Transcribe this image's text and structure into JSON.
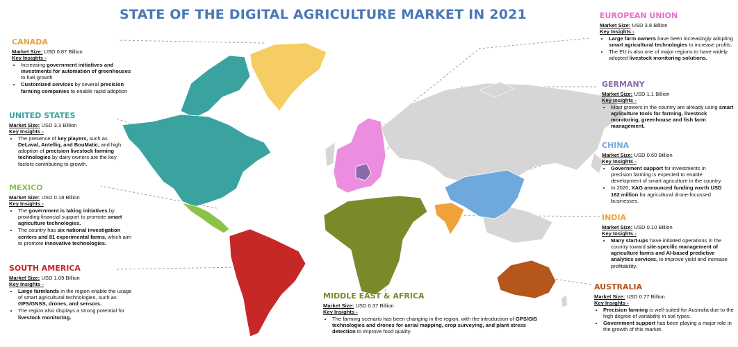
{
  "title": "STATE OF THE DIGITAL AGRICULTURE MARKET IN 2021",
  "labels": {
    "market_size": "Market Size:",
    "key_insights": "Key Insights -"
  },
  "regions": [
    {
      "key": "canada",
      "name": "CANADA",
      "color": "#e8a33c",
      "market_size": "USD 0.87 Billion",
      "insights": [
        [
          [
            "Increasing ",
            false
          ],
          [
            "government initiatives and investments for automation of greenhouses",
            true
          ],
          [
            " to fuel growth",
            false
          ]
        ],
        [
          [
            "Customized services",
            true
          ],
          [
            " by several ",
            false
          ],
          [
            "precision farming companies",
            true
          ],
          [
            " to enable rapid adoption",
            false
          ]
        ]
      ]
    },
    {
      "key": "us",
      "name": "UNITED STATES",
      "color": "#3aa3a0",
      "market_size": "USD 3.3 Billion",
      "insights": [
        [
          [
            "The presence of ",
            false
          ],
          [
            "key players,",
            true
          ],
          [
            " such as ",
            false
          ],
          [
            "DeLaval, Antelliq, and BouMatic,",
            true
          ],
          [
            " and high adoption of ",
            false
          ],
          [
            "precision livestock farming technologies",
            true
          ],
          [
            " by dairy owners are the key factors contributing to growth.",
            false
          ]
        ]
      ]
    },
    {
      "key": "mexico",
      "name": "MEXICO",
      "color": "#8bc34a",
      "market_size": "USD 0.18 Billion",
      "insights": [
        [
          [
            "The ",
            false
          ],
          [
            "government is taking initiatives",
            true
          ],
          [
            " by providing financial support to promote ",
            false
          ],
          [
            "smart agriculture technologies.",
            true
          ]
        ],
        [
          [
            "The country has ",
            false
          ],
          [
            "six national investigation centers and 81 experimental farms,",
            true
          ],
          [
            " which aim to promote ",
            false
          ],
          [
            "innovative technologies.",
            true
          ]
        ]
      ]
    },
    {
      "key": "south_america",
      "name": "SOUTH AMERICA",
      "color": "#c62828",
      "market_size": "USD 1.09 Billion",
      "insights": [
        [
          [
            "Large farmlands",
            true
          ],
          [
            " in the region enable the usage of smart agricultural technologies, such as ",
            false
          ],
          [
            "GPS/GNSS, drones, and sensors.",
            true
          ]
        ],
        [
          [
            "The region also displays a strong potential for ",
            false
          ],
          [
            "livestock monitoring.",
            true
          ]
        ]
      ]
    },
    {
      "key": "mea",
      "name": "MIDDLE EAST & AFRICA",
      "color": "#7a8a2a",
      "market_size": "USD 0.37 Billion",
      "insights": [
        [
          [
            "The farming scenario has been changing in the region, with the introduction of ",
            false
          ],
          [
            "GPS/GIS technologies and drones for aerial mapping, crop surveying, and plant stress detection",
            true
          ],
          [
            " to improve food quality.",
            false
          ]
        ]
      ]
    },
    {
      "key": "eu",
      "name": "EUROPEAN UNION",
      "color": "#e66ec8",
      "market_size": "USD 3.8 Billion",
      "insights": [
        [
          [
            "Large farm owners",
            true
          ],
          [
            " have been increasingly adopting ",
            false
          ],
          [
            "smart agricultural technologies",
            true
          ],
          [
            " to increase profits.",
            false
          ]
        ],
        [
          [
            "The EU is also one of major regions to have widely adopted ",
            false
          ],
          [
            "livestock monitoring solutions.",
            true
          ]
        ]
      ]
    },
    {
      "key": "germany",
      "name": "GERMANY",
      "color": "#8a6aa8",
      "market_size": "USD 1.1 Billion",
      "insights": [
        [
          [
            "Most growers in the country are already using ",
            false
          ],
          [
            "smart agriculture tools for farming, livestock monitoring, greenhouse and fish farm management.",
            true
          ]
        ]
      ]
    },
    {
      "key": "china",
      "name": "CHINA",
      "color": "#6fa8dc",
      "market_size": "USD 0.60 Billion",
      "insights": [
        [
          [
            "Government support",
            true
          ],
          [
            " for investments in precision farming is expected to enable development of smart agriculture in the country.",
            false
          ]
        ],
        [
          [
            "In 2020, ",
            false
          ],
          [
            "XAG announced funding worth USD 182 million",
            true
          ],
          [
            " for agricultural drone-focussed businesses.",
            false
          ]
        ]
      ]
    },
    {
      "key": "india",
      "name": "INDIA",
      "color": "#f0a23a",
      "market_size": "USD 0.10 Billion",
      "insights": [
        [
          [
            "Many start-ups",
            true
          ],
          [
            " have initiated operations in the country toward ",
            false
          ],
          [
            "site-specific management of agriculture farms and AI-based predictive analytics services,",
            true
          ],
          [
            " to improve yield and increase profitability.",
            false
          ]
        ]
      ]
    },
    {
      "key": "australia",
      "name": "AUSTRALIA",
      "color": "#b5561c",
      "market_size": "USD 0.77 Billion",
      "insights": [
        [
          [
            "Precision farming",
            true
          ],
          [
            " is well-suited for Australia due to the high degree of variability in soil types.",
            false
          ]
        ],
        [
          [
            "Government support",
            true
          ],
          [
            " has been playing a major role in the growth of this market.",
            false
          ]
        ]
      ]
    }
  ]
}
